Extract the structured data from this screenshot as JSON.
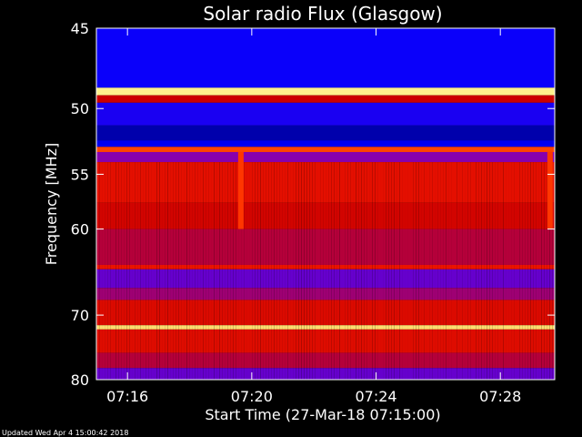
{
  "chart_data": {
    "type": "heatmap",
    "title": "Solar radio Flux (Glasgow)",
    "xlabel": "Start Time (27-Mar-18 07:15:00)",
    "ylabel": "Frequency [MHz]",
    "x_ticks": [
      "07:16",
      "07:20",
      "07:24",
      "07:28"
    ],
    "x_tick_minutes": [
      1,
      5,
      9,
      13
    ],
    "xlim_minutes": [
      0.0,
      14.75
    ],
    "y_ticks": [
      45,
      50,
      55,
      60,
      70,
      80
    ],
    "ylim": [
      45,
      80
    ],
    "y_scale": "reciprocal",
    "colormap": [
      "#000060",
      "#0000ff",
      "#8000c0",
      "#cc0000",
      "#ff2000",
      "#ff9000",
      "#ffffa0"
    ],
    "intensity_bands": [
      {
        "freq_from": 45.0,
        "freq_to": 48.6,
        "level": 0.18
      },
      {
        "freq_from": 48.6,
        "freq_to": 49.1,
        "level": 0.98
      },
      {
        "freq_from": 49.1,
        "freq_to": 49.6,
        "level": 0.5
      },
      {
        "freq_from": 49.6,
        "freq_to": 51.2,
        "level": 0.2
      },
      {
        "freq_from": 51.2,
        "freq_to": 52.3,
        "level": 0.08
      },
      {
        "freq_from": 52.3,
        "freq_to": 52.8,
        "level": 0.15
      },
      {
        "freq_from": 52.8,
        "freq_to": 53.2,
        "level": 0.72
      },
      {
        "freq_from": 53.2,
        "freq_to": 54.0,
        "level": 0.35
      },
      {
        "freq_from": 54.0,
        "freq_to": 57.5,
        "level": 0.58
      },
      {
        "freq_from": 57.5,
        "freq_to": 60.0,
        "level": 0.52
      },
      {
        "freq_from": 60.0,
        "freq_to": 63.8,
        "level": 0.45
      },
      {
        "freq_from": 63.8,
        "freq_to": 64.3,
        "level": 0.6
      },
      {
        "freq_from": 64.3,
        "freq_to": 66.5,
        "level": 0.3
      },
      {
        "freq_from": 66.5,
        "freq_to": 68.0,
        "level": 0.4
      },
      {
        "freq_from": 68.0,
        "freq_to": 71.4,
        "level": 0.55
      },
      {
        "freq_from": 71.4,
        "freq_to": 72.0,
        "level": 0.95
      },
      {
        "freq_from": 72.0,
        "freq_to": 75.5,
        "level": 0.56
      },
      {
        "freq_from": 75.5,
        "freq_to": 78.0,
        "level": 0.45
      },
      {
        "freq_from": 78.0,
        "freq_to": 80.0,
        "level": 0.3
      }
    ],
    "bursts": [
      {
        "time_minute": 4.65,
        "freq_from": 53.2,
        "freq_to": 60.0
      },
      {
        "time_minute": 14.6,
        "freq_from": 53.2,
        "freq_to": 60.0
      }
    ],
    "grid": false,
    "legend": "none"
  },
  "footer": {
    "updated": "Updated Wed Apr  4 15:00:42 2018"
  }
}
